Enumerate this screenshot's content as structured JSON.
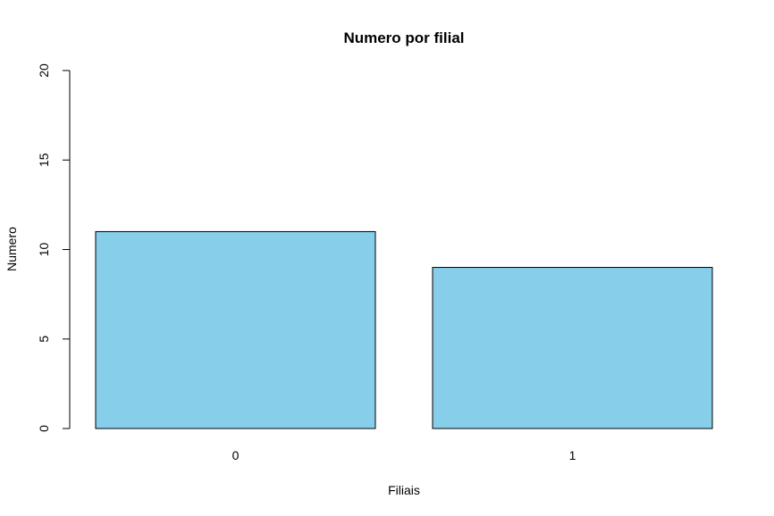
{
  "chart_data": {
    "type": "bar",
    "title": "Numero por filial",
    "xlabel": "Filiais",
    "ylabel": "Numero",
    "categories": [
      "0",
      "1"
    ],
    "values": [
      11,
      9
    ],
    "ylim": [
      0,
      20
    ],
    "yticks": [
      "0",
      "5",
      "10",
      "15",
      "20"
    ],
    "bar_color": "#87CEEB",
    "bar_border_color": "#000000",
    "grid": false,
    "legend": "none"
  }
}
